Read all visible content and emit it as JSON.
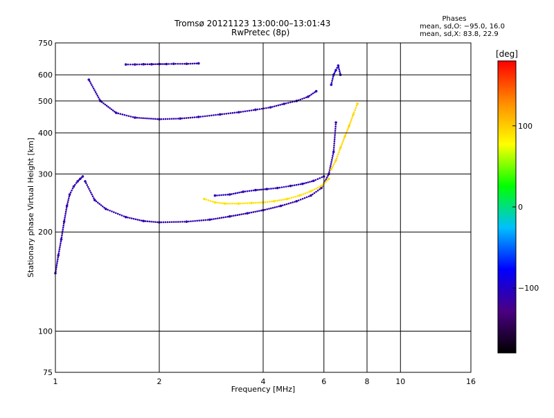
{
  "header": {
    "title": "Tromsø 20121123 13:00:00–13:01:43",
    "subtitle": "RwPretec (8p)"
  },
  "phases": {
    "heading": "Phases",
    "line_o": "mean, sd,O: −95.0, 16.0",
    "line_x": "mean, sd,X:  83.8, 22.9"
  },
  "chart_data": {
    "type": "scatter",
    "xlabel": "Frequency [MHz]",
    "ylabel": "Stationary phase Virtual Height [km]",
    "xscale": "log",
    "yscale": "log",
    "xlim": [
      1,
      16
    ],
    "ylim": [
      75,
      750
    ],
    "xticks": [
      1,
      2,
      4,
      6,
      8,
      10,
      16
    ],
    "xtick_labels": [
      "1",
      "2",
      "4",
      "6",
      "8",
      "10",
      "16"
    ],
    "yticks": [
      75,
      100,
      200,
      300,
      400,
      500,
      600,
      750
    ],
    "ytick_labels": [
      "75",
      "100",
      "200",
      "300",
      "400",
      "500",
      "600",
      "750"
    ],
    "grid": true,
    "colorbar": {
      "label": "[deg]",
      "range": [
        -180,
        180
      ],
      "ticks": [
        100,
        0,
        -100
      ],
      "tick_labels": [
        "100",
        "0",
        "−100"
      ],
      "colors": [
        "#000000",
        "#4b0082",
        "#0000ff",
        "#00bfff",
        "#00ff00",
        "#ffff00",
        "#ff8c00",
        "#ff0000"
      ]
    },
    "traces": [
      {
        "x": [
          1.0,
          1.02,
          1.04,
          1.06,
          1.08,
          1.1,
          1.13,
          1.16,
          1.18,
          1.2
        ],
        "y": [
          150,
          170,
          190,
          215,
          240,
          260,
          275,
          285,
          290,
          295
        ],
        "phase": -110
      },
      {
        "x": [
          1.22,
          1.3,
          1.4,
          1.6,
          1.8,
          2.0,
          2.4,
          2.8,
          3.2,
          3.6,
          4.0,
          4.5,
          5.0,
          5.5,
          5.9,
          6.2,
          6.4,
          6.5
        ],
        "y": [
          285,
          250,
          235,
          222,
          216,
          214,
          215,
          218,
          223,
          228,
          233,
          240,
          248,
          258,
          272,
          300,
          350,
          430
        ],
        "phase": -110
      },
      {
        "x": [
          2.9,
          3.2,
          3.5,
          3.8,
          4.1,
          4.4,
          4.8,
          5.2,
          5.6,
          6.0
        ],
        "y": [
          258,
          260,
          265,
          268,
          270,
          272,
          276,
          280,
          286,
          295
        ],
        "phase": -105
      },
      {
        "x": [
          2.7,
          2.9,
          3.1,
          3.4,
          3.7,
          4.0,
          4.3,
          4.7,
          5.1,
          5.5,
          5.9,
          6.2
        ],
        "y": [
          252,
          246,
          244,
          244,
          245,
          246,
          248,
          252,
          258,
          266,
          276,
          290
        ],
        "phase": 90
      },
      {
        "x": [
          6.3,
          6.5,
          6.7,
          6.9,
          7.1,
          7.3,
          7.5
        ],
        "y": [
          310,
          330,
          360,
          390,
          420,
          455,
          490
        ],
        "phase": 95
      },
      {
        "x": [
          1.25,
          1.35,
          1.5,
          1.7,
          2.0,
          2.3,
          2.6,
          3.0,
          3.4,
          3.8,
          4.2,
          4.6,
          5.0,
          5.4,
          5.7
        ],
        "y": [
          580,
          500,
          460,
          445,
          440,
          442,
          447,
          455,
          462,
          470,
          478,
          490,
          500,
          515,
          535
        ],
        "phase": -110
      },
      {
        "x": [
          1.6,
          1.7,
          1.8,
          1.9,
          2.0,
          2.1,
          2.2,
          2.4,
          2.6
        ],
        "y": [
          645,
          645,
          646,
          646,
          647,
          647,
          648,
          648,
          650
        ],
        "phase": -110
      },
      {
        "x": [
          6.3,
          6.4,
          6.5,
          6.6,
          6.7
        ],
        "y": [
          560,
          600,
          620,
          640,
          600
        ],
        "phase": -100
      }
    ]
  }
}
